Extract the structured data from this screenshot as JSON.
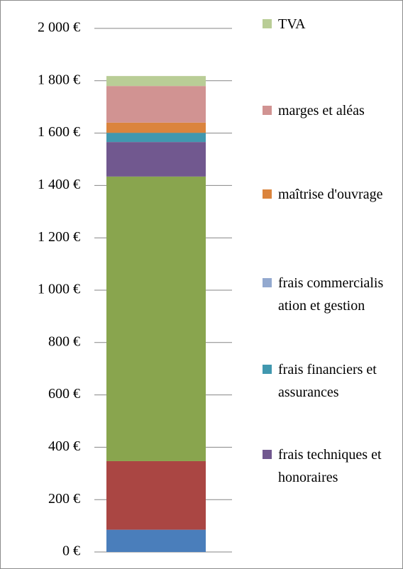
{
  "chart_data": {
    "type": "stacked_bar",
    "ylim": [
      0,
      2000
    ],
    "yticks": [
      {
        "value": 0,
        "label": "0 €"
      },
      {
        "value": 200,
        "label": "200 €"
      },
      {
        "value": 400,
        "label": "400 €"
      },
      {
        "value": 600,
        "label": "600 €"
      },
      {
        "value": 800,
        "label": "800 €"
      },
      {
        "value": 1000,
        "label": "1 000 €"
      },
      {
        "value": 1200,
        "label": "1 200 €"
      },
      {
        "value": 1400,
        "label": "1 400 €"
      },
      {
        "value": 1600,
        "label": "1 600 €"
      },
      {
        "value": 1800,
        "label": "1 800 €"
      },
      {
        "value": 2000,
        "label": "2 000 €"
      }
    ],
    "grid": true,
    "series": [
      {
        "color": "#4a7ebb",
        "values": [
          85
        ]
      },
      {
        "color": "#aa4643",
        "values": [
          262
        ]
      },
      {
        "color": "#89a54e",
        "values": [
          1087
        ]
      },
      {
        "name": "frais techniques et honoraires",
        "color": "#71588f",
        "values": [
          132
        ]
      },
      {
        "name": "frais financiers et assurances",
        "color": "#4198af",
        "values": [
          35
        ]
      },
      {
        "name": "frais commercialisation et gestion",
        "color": "#93a9cf",
        "values": [
          0
        ]
      },
      {
        "name": "maîtrise d'ouvrage",
        "color": "#db843d",
        "values": [
          39
        ]
      },
      {
        "name": "marges et aléas",
        "color": "#d19392",
        "values": [
          140
        ]
      },
      {
        "name": "TVA",
        "color": "#b9cd96",
        "values": [
          38
        ]
      }
    ]
  }
}
